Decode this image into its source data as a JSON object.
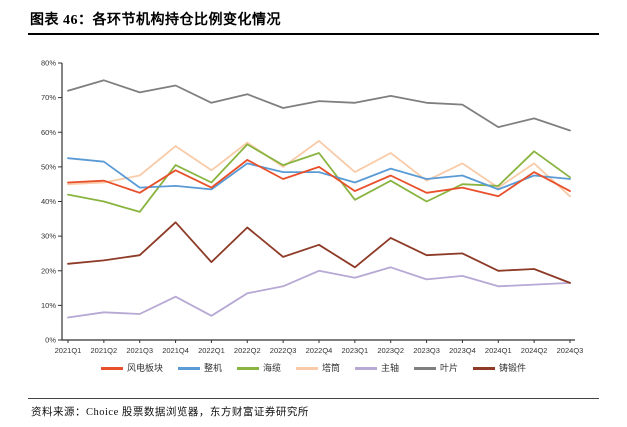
{
  "header": {
    "figure_label": "图表 46：各环节机构持仓比例变化情况"
  },
  "source": {
    "text": "资料来源：Choice 股票数据浏览器，东方财富证券研究所"
  },
  "chart_data": {
    "type": "line",
    "title": "各环节机构持仓比例变化情况",
    "xlabel": "",
    "ylabel": "",
    "ylim": [
      0,
      80
    ],
    "ytick_step": 10,
    "ytick_suffix": "%",
    "grid": false,
    "legend_position": "bottom",
    "categories": [
      "2021Q1",
      "2021Q2",
      "2021Q3",
      "2021Q4",
      "2022Q1",
      "2022Q2",
      "2022Q3",
      "2022Q4",
      "2023Q1",
      "2023Q2",
      "2023Q3",
      "2023Q4",
      "2024Q1",
      "2024Q2",
      "2024Q3"
    ],
    "series": [
      {
        "name": "风电板块",
        "color": "#E8502B",
        "values": [
          45.5,
          46,
          42.5,
          49,
          44,
          52,
          46.5,
          50,
          43,
          47.5,
          42.5,
          44,
          41.5,
          48.5,
          43
        ]
      },
      {
        "name": "整机",
        "color": "#5B9BD5",
        "values": [
          52.5,
          51.5,
          44,
          44.5,
          43.5,
          51,
          48.5,
          48.5,
          45.5,
          49.5,
          46.5,
          47.5,
          43.5,
          47.5,
          46.5
        ]
      },
      {
        "name": "海缆",
        "color": "#89B440",
        "values": [
          42,
          40,
          37,
          50.5,
          45.5,
          56.5,
          50.5,
          54,
          40.5,
          46,
          40,
          45,
          44.5,
          54.5,
          47
        ]
      },
      {
        "name": "塔筒",
        "color": "#F9CBA8",
        "values": [
          45,
          45.5,
          47.5,
          56,
          49,
          57,
          50,
          57.5,
          48.5,
          54,
          46,
          51,
          44,
          51,
          41.5
        ]
      },
      {
        "name": "主轴",
        "color": "#B7A8D4",
        "values": [
          6.5,
          8,
          7.5,
          12.5,
          7,
          13.5,
          15.5,
          20,
          18,
          21,
          17.5,
          18.5,
          15.5,
          16,
          16.5
        ]
      },
      {
        "name": "叶片",
        "color": "#7F7F7F",
        "values": [
          72,
          75,
          71.5,
          73.5,
          68.5,
          71,
          67,
          69,
          68.5,
          70.5,
          68.5,
          68,
          61.5,
          64,
          60.5
        ]
      },
      {
        "name": "铸锻件",
        "color": "#8D3A26",
        "values": [
          22,
          23,
          24.5,
          34,
          22.5,
          32.5,
          24,
          27.5,
          21,
          29.5,
          24.5,
          25,
          20,
          20.5,
          16.5
        ]
      }
    ]
  }
}
